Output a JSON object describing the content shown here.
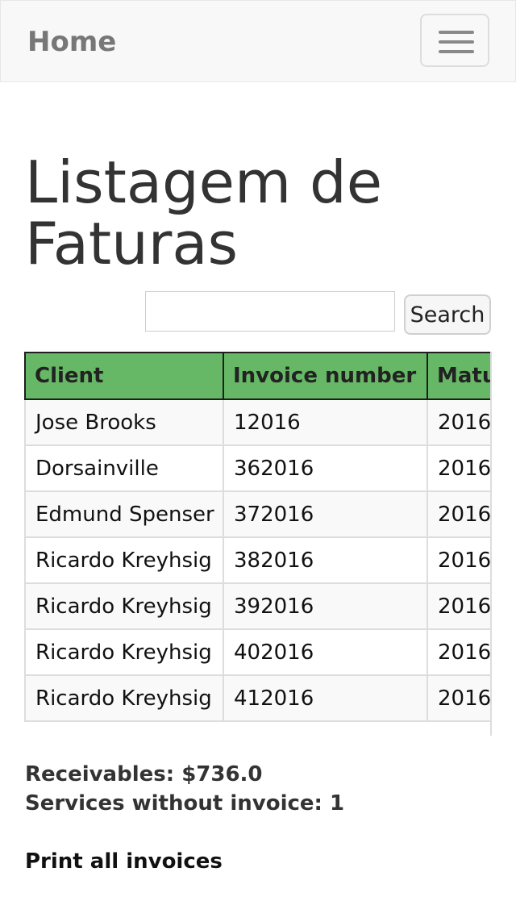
{
  "navbar": {
    "brand": "Home",
    "toggle_icon": "hamburger-menu-icon"
  },
  "page": {
    "title": "Listagem de Faturas"
  },
  "search": {
    "value": "",
    "placeholder": "",
    "button_label": "Search"
  },
  "table": {
    "columns": [
      "Client",
      "Invoice number",
      "Maturity"
    ],
    "rows": [
      [
        "Jose Brooks",
        "12016",
        "2016"
      ],
      [
        "Dorsainville",
        "362016",
        "2016"
      ],
      [
        "Edmund Spenser",
        "372016",
        "2016"
      ],
      [
        "Ricardo Kreyhsig",
        "382016",
        "2016"
      ],
      [
        "Ricardo Kreyhsig",
        "392016",
        "2016"
      ],
      [
        "Ricardo Kreyhsig",
        "402016",
        "2016"
      ],
      [
        "Ricardo Kreyhsig",
        "412016",
        "2016"
      ]
    ],
    "header_color": "#66b866"
  },
  "summary": {
    "receivables": "Receivables: $736.0",
    "services_without_invoice": "Services without invoice: 1"
  },
  "actions": {
    "print_all": "Print all invoices"
  }
}
